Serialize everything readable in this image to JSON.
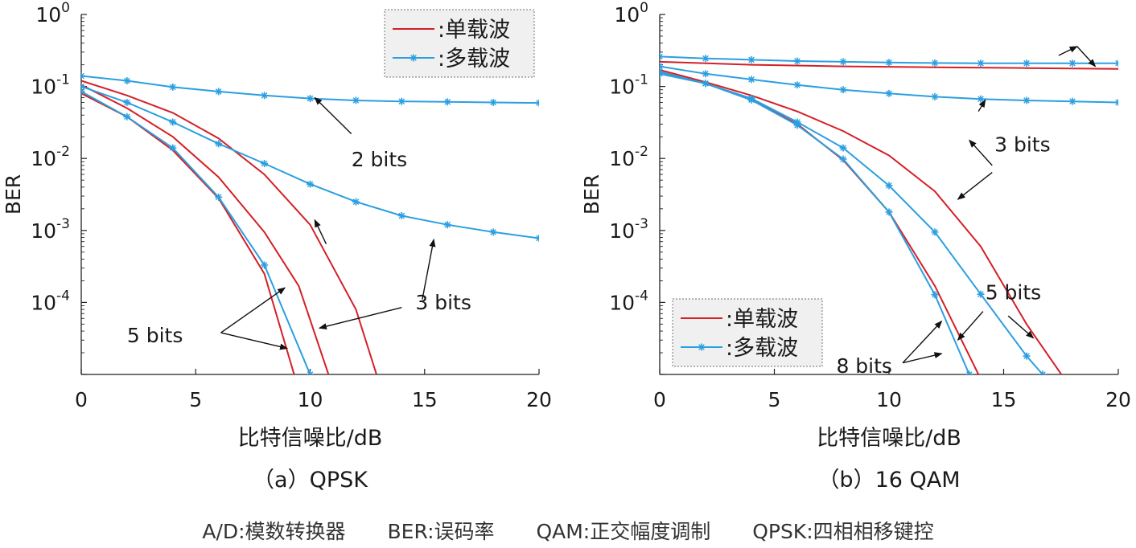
{
  "colors": {
    "single_carrier": "#d42027",
    "multi_carrier": "#2b9fe0",
    "axis": "#222222"
  },
  "chart_data": [
    {
      "type": "line",
      "caption": "（a）QPSK",
      "xlabel": "比特信噪比/dB",
      "ylabel": "BER",
      "xlim": [
        0,
        20
      ],
      "ylim": [
        1e-05,
        1
      ],
      "y_scale": "log",
      "x_ticks": [
        "0",
        "5",
        "10",
        "15",
        "20"
      ],
      "y_tick_exponents": [
        "0",
        "-1",
        "-2",
        "-3",
        "-4"
      ],
      "y_tick_base": "10",
      "legend": {
        "position": "top-right",
        "entries": [
          {
            "label": ":单载波",
            "kind": "single"
          },
          {
            "label": ":多载波",
            "kind": "multi"
          }
        ]
      },
      "series": [
        {
          "kind": "single",
          "x": [
            0,
            2,
            4,
            6,
            8,
            10,
            12,
            12.9
          ],
          "y": [
            0.12,
            0.075,
            0.043,
            0.019,
            0.006,
            0.0012,
            8e-05,
            1e-05
          ]
        },
        {
          "kind": "single",
          "x": [
            0,
            2,
            4,
            6,
            8,
            9.5,
            10.8
          ],
          "y": [
            0.105,
            0.05,
            0.02,
            0.0055,
            0.00095,
            0.00017,
            1e-05
          ]
        },
        {
          "kind": "single",
          "x": [
            0,
            2,
            4,
            6,
            8,
            9.3
          ],
          "y": [
            0.08,
            0.038,
            0.013,
            0.0028,
            0.00025,
            1e-05
          ]
        },
        {
          "kind": "multi",
          "x": [
            0,
            2,
            4,
            6,
            8,
            10,
            12,
            14,
            16,
            18,
            20
          ],
          "y": [
            0.14,
            0.12,
            0.098,
            0.085,
            0.075,
            0.068,
            0.064,
            0.062,
            0.061,
            0.06,
            0.059
          ]
        },
        {
          "kind": "multi",
          "x": [
            0,
            2,
            4,
            6,
            8,
            10,
            12,
            14,
            16,
            18,
            20
          ],
          "y": [
            0.1,
            0.06,
            0.032,
            0.016,
            0.0085,
            0.0044,
            0.0025,
            0.0016,
            0.0012,
            0.00095,
            0.00078
          ]
        },
        {
          "kind": "multi",
          "x": [
            0,
            2,
            4,
            6,
            8,
            10
          ],
          "y": [
            0.085,
            0.038,
            0.014,
            0.0029,
            0.00033,
            1e-05
          ]
        }
      ],
      "annotations": [
        {
          "text": "2 bits",
          "x": 11.8,
          "y": 0.0078,
          "arrows": [
            [
              10.7,
              0.00065,
              10.2,
              0.0014
            ],
            [
              11.8,
              0.022,
              10.2,
              0.07
            ]
          ]
        },
        {
          "text": "3 bits",
          "x": 14.6,
          "y": 8e-05,
          "arrows": [
            [
              14.0,
              8.5e-05,
              10.4,
              4.4e-05
            ],
            [
              14.9,
              0.00011,
              15.4,
              0.00075
            ]
          ]
        },
        {
          "text": "5 bits",
          "x": 2.0,
          "y": 2.8e-05,
          "arrows": [
            [
              6.1,
              3.8e-05,
              8.9,
              0.00016
            ],
            [
              6.1,
              3.8e-05,
              9.0,
              2.3e-05
            ]
          ]
        }
      ]
    },
    {
      "type": "line",
      "caption": "（b）16 QAM",
      "xlabel": "比特信噪比/dB",
      "ylabel": "BER",
      "xlim": [
        0,
        20
      ],
      "ylim": [
        1e-05,
        1
      ],
      "y_scale": "log",
      "x_ticks": [
        "0",
        "5",
        "10",
        "15",
        "20"
      ],
      "y_tick_exponents": [
        "0",
        "-1",
        "-2",
        "-3",
        "-4"
      ],
      "y_tick_base": "10",
      "legend": {
        "position": "bottom-left",
        "entries": [
          {
            "label": ":单载波",
            "kind": "single"
          },
          {
            "label": ":多载波",
            "kind": "multi"
          }
        ]
      },
      "series": [
        {
          "kind": "single",
          "x": [
            0,
            4,
            8,
            12,
            16,
            20
          ],
          "y": [
            0.22,
            0.2,
            0.19,
            0.185,
            0.18,
            0.175
          ]
        },
        {
          "kind": "single",
          "x": [
            0,
            2,
            4,
            6,
            8,
            10,
            12,
            14,
            16,
            18,
            19
          ],
          "y": [
            0.17,
            0.115,
            0.075,
            0.045,
            0.024,
            0.011,
            0.0035,
            0.0006,
            5e-05,
            6e-06,
            1e-05
          ]
        },
        {
          "kind": "single",
          "x": [
            0,
            2,
            4,
            6,
            8,
            10,
            12,
            13.9
          ],
          "y": [
            0.16,
            0.11,
            0.065,
            0.03,
            0.0095,
            0.0018,
            0.00017,
            1e-05
          ]
        },
        {
          "kind": "multi",
          "x": [
            0,
            2,
            4,
            6,
            8,
            10,
            12,
            14,
            16,
            18,
            20
          ],
          "y": [
            0.26,
            0.245,
            0.235,
            0.225,
            0.22,
            0.215,
            0.212,
            0.21,
            0.21,
            0.21,
            0.21
          ]
        },
        {
          "kind": "multi",
          "x": [
            0,
            2,
            4,
            6,
            8,
            10,
            12,
            14,
            16,
            18,
            20
          ],
          "y": [
            0.19,
            0.15,
            0.125,
            0.105,
            0.09,
            0.08,
            0.072,
            0.067,
            0.064,
            0.062,
            0.06
          ]
        },
        {
          "kind": "multi",
          "x": [
            0,
            2,
            4,
            6,
            8,
            10,
            12,
            14,
            16,
            16.7
          ],
          "y": [
            0.15,
            0.11,
            0.068,
            0.032,
            0.014,
            0.0042,
            0.00095,
            0.00013,
            1.8e-05,
            1e-05
          ]
        },
        {
          "kind": "multi",
          "x": [
            0,
            2,
            4,
            6,
            8,
            10,
            12,
            13.5
          ],
          "y": [
            0.16,
            0.11,
            0.065,
            0.029,
            0.0098,
            0.0018,
            0.000128,
            1e-05
          ]
        }
      ],
      "annotations": [
        {
          "text": "3 bits",
          "x": 14.6,
          "y": 0.0125,
          "arrows": [
            [
              14.5,
              0.0064,
              13.0,
              0.0027
            ],
            [
              14.5,
              0.008,
              13.5,
              0.018
            ],
            [
              13.9,
              0.045,
              14.2,
              0.065
            ]
          ]
        },
        {
          "text": "5 bits",
          "x": 14.2,
          "y": 0.00011,
          "arrows": [
            [
              14.1,
              7.5e-05,
              13.0,
              3e-05
            ],
            [
              15.2,
              6.5e-05,
              16.3,
              3.2e-05
            ]
          ]
        },
        {
          "text": "8 bits",
          "x": 7.7,
          "y": 1.05e-05,
          "arrows": [
            [
              10.6,
              1.45e-05,
              12.3,
              5.5e-05
            ],
            [
              10.6,
              1.45e-05,
              12.3,
              1.95e-05
            ]
          ]
        },
        {
          "text": "",
          "x": 0,
          "y": 0,
          "arrows": [
            [
              17.4,
              0.27,
              18.2,
              0.36
            ],
            [
              18.2,
              0.36,
              19.0,
              0.19
            ]
          ]
        }
      ]
    }
  ],
  "footer": {
    "items": [
      "A/D:模数转换器",
      "BER:误码率",
      "QAM:正交幅度调制",
      "QPSK:四相相移键控"
    ]
  }
}
